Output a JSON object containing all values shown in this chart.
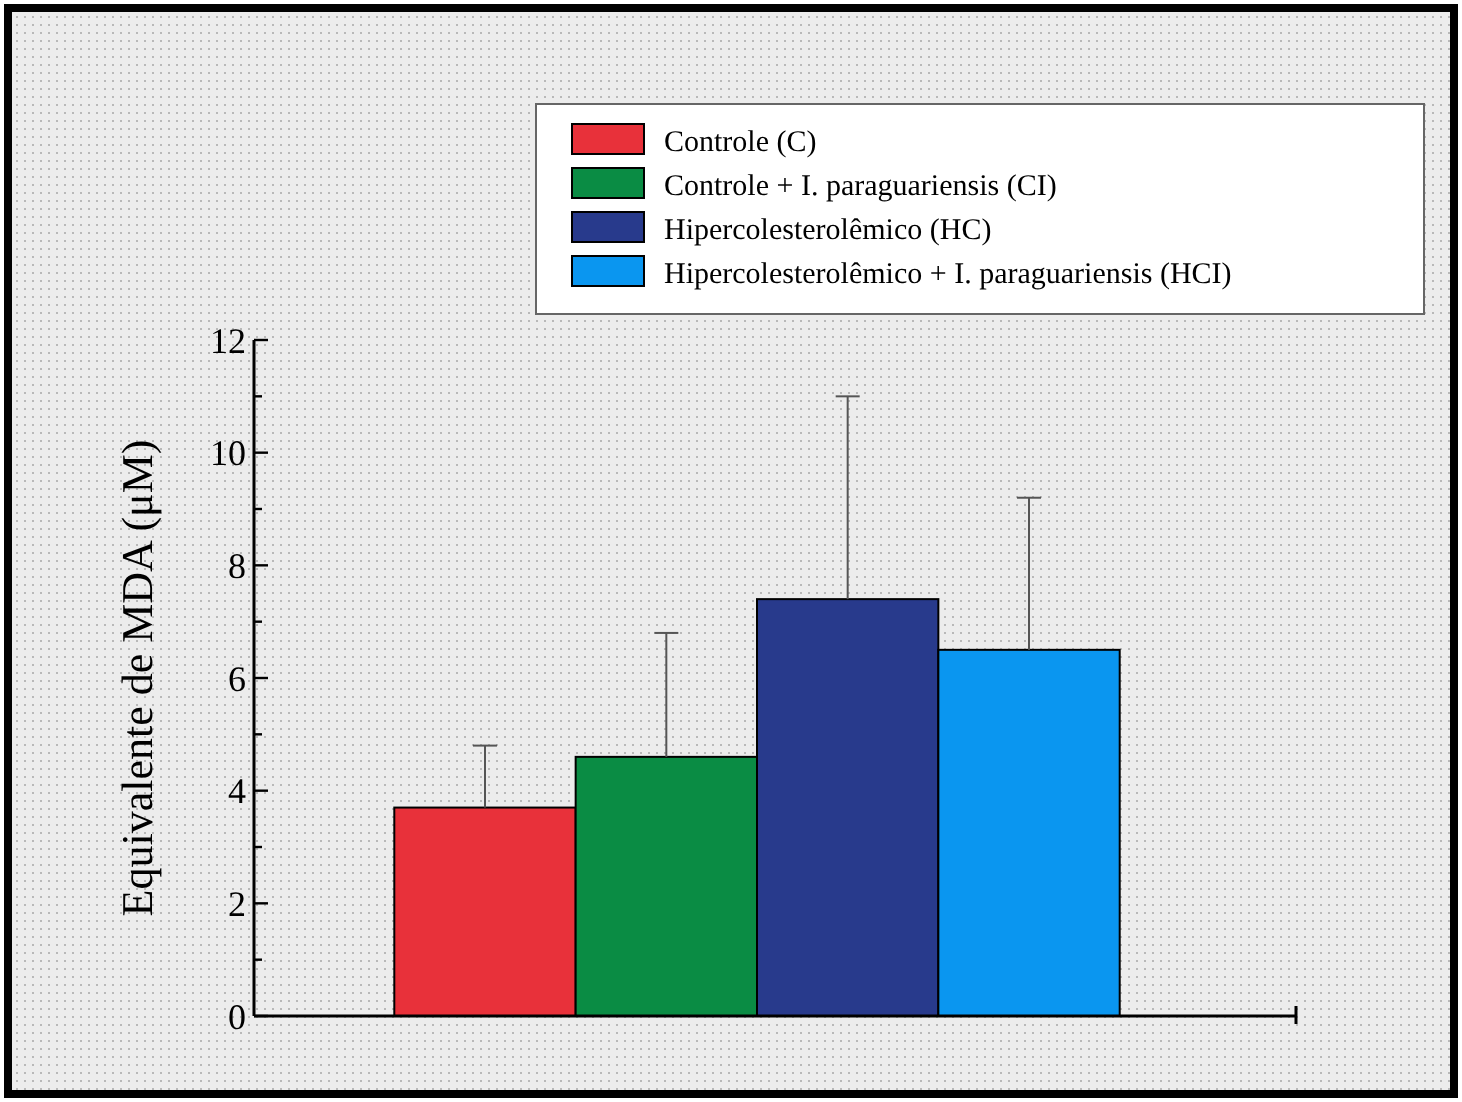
{
  "chart_data": {
    "type": "bar",
    "ylabel": "Equivalente de MDA (μM)",
    "categories": [
      null
    ],
    "series": [
      {
        "name": "Controle (C)",
        "color": "#e8313a",
        "values": [
          3.7
        ],
        "errors": [
          [
            3.7,
            4.8
          ]
        ]
      },
      {
        "name": "Controle + I. paraguariensis (CI)",
        "color": "#0a8c44",
        "values": [
          4.6
        ],
        "errors": [
          [
            4.6,
            6.8
          ]
        ]
      },
      {
        "name": "Hipercolesterolêmico (HC)",
        "color": "#283a8c",
        "values": [
          7.4
        ],
        "errors": [
          [
            7.4,
            11.0
          ]
        ]
      },
      {
        "name": "Hipercolesterolêmico + I. paraguariensis (HCI)",
        "color": "#0a96f0",
        "values": [
          6.5
        ],
        "errors": [
          [
            6.5,
            9.2
          ]
        ]
      }
    ],
    "ylim": [
      0,
      12
    ],
    "yticks": [
      0,
      {
        "value": 1,
        "label": null
      },
      2,
      {
        "value": 3,
        "label": null
      },
      4,
      {
        "value": 5,
        "label": null
      },
      6,
      {
        "value": 7,
        "label": null
      },
      8,
      {
        "value": 9,
        "label": null
      },
      10,
      {
        "value": 11,
        "label": null
      },
      12
    ],
    "legend": "top right",
    "grid": false
  }
}
